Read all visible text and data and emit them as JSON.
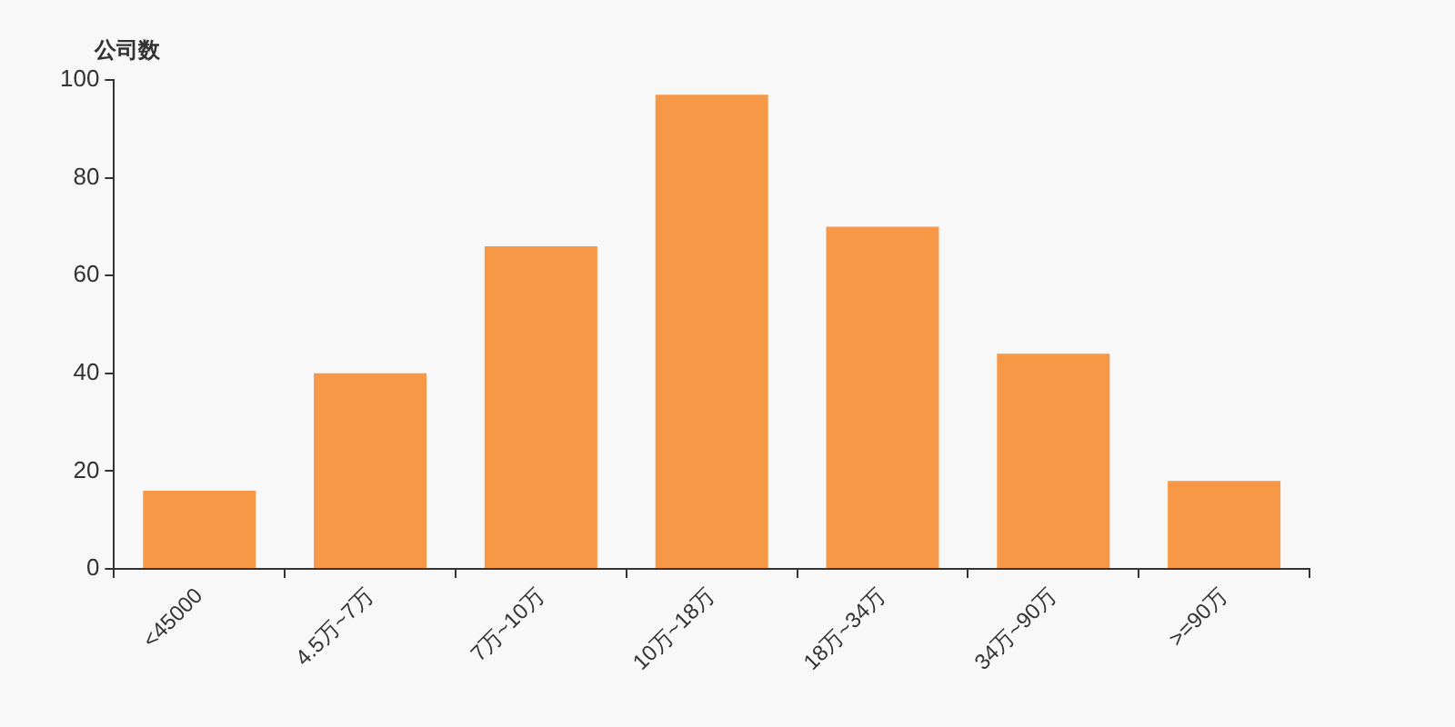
{
  "chart_data": {
    "type": "bar",
    "ylabel": "公司数",
    "categories": [
      "<45000",
      "4.5万~7万",
      "7万~10万",
      "10万~18万",
      "18万~34万",
      "34万~90万",
      ">=90万"
    ],
    "values": [
      16,
      40,
      66,
      97,
      70,
      44,
      18
    ],
    "color": "#f79846",
    "ylim": [
      0,
      100
    ],
    "yticks": [
      0,
      20,
      40,
      60,
      80,
      100
    ],
    "grid": false,
    "legend": false
  }
}
